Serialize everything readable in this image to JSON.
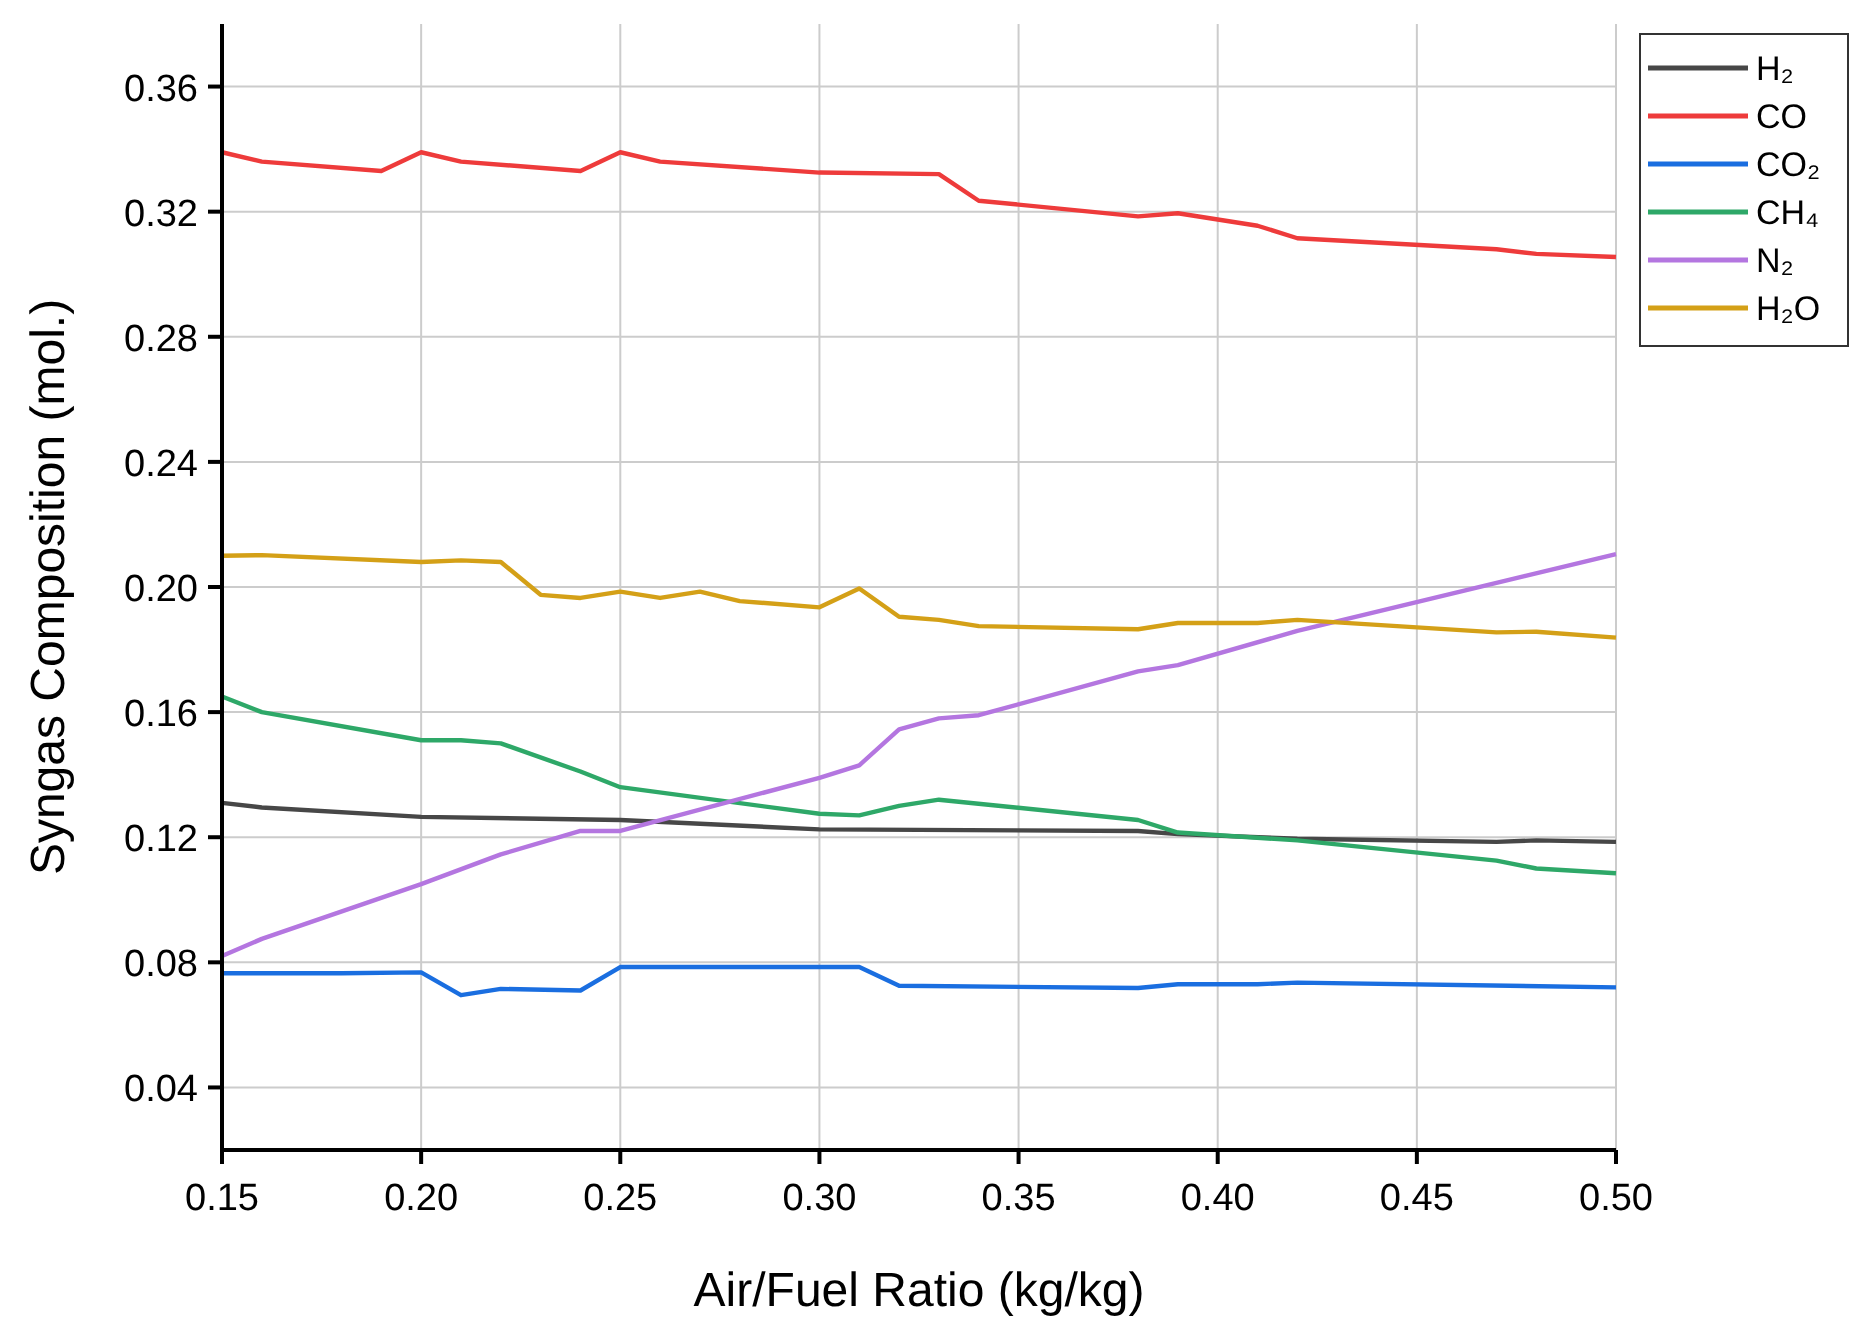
{
  "chart_data": {
    "type": "line",
    "xlabel": "Air/Fuel Ratio (kg/kg)",
    "ylabel": "Syngas Composition (mol.)",
    "xlim": [
      0.15,
      0.5
    ],
    "ylim": [
      0.02,
      0.38
    ],
    "xticks": [
      0.15,
      {
        "value": 0.2,
        "label": "0.20"
      },
      0.25,
      {
        "value": 0.3,
        "label": "0.30"
      },
      0.35,
      {
        "value": 0.4,
        "label": "0.40"
      },
      0.45,
      {
        "value": 0.5,
        "label": "0.50"
      }
    ],
    "yticks": [
      0.04,
      {
        "value": 0.08,
        "label": "0.08"
      },
      0.12,
      0.16,
      {
        "value": 0.2,
        "label": "0.20"
      },
      0.24,
      0.28,
      0.32,
      0.36
    ],
    "grid": true,
    "legend": "top right",
    "line_style": "solid",
    "marker": "none",
    "series": [
      {
        "name": "H₂",
        "color": "#474747",
        "x": [
          0.15,
          0.16,
          0.2,
          0.25,
          0.3,
          0.38,
          0.39,
          0.42,
          0.47,
          0.48,
          0.5
        ],
        "values": [
          0.131,
          0.1295,
          0.1265,
          0.1255,
          0.1225,
          0.122,
          0.121,
          0.1195,
          0.1185,
          0.119,
          0.1185
        ]
      },
      {
        "name": "CO",
        "color": "#ee3b3b",
        "x": [
          0.15,
          0.16,
          0.19,
          0.2,
          0.21,
          0.24,
          0.25,
          0.26,
          0.3,
          0.33,
          0.34,
          0.38,
          0.39,
          0.41,
          0.42,
          0.47,
          0.48,
          0.5
        ],
        "values": [
          0.339,
          0.336,
          0.333,
          0.339,
          0.336,
          0.333,
          0.339,
          0.336,
          0.3325,
          0.332,
          0.3235,
          0.3185,
          0.3195,
          0.3155,
          0.3115,
          0.308,
          0.3065,
          0.3055
        ]
      },
      {
        "name": "CO₂",
        "color": "#1a6ee0",
        "x": [
          0.15,
          0.18,
          0.2,
          0.21,
          0.22,
          0.24,
          0.25,
          0.31,
          0.32,
          0.38,
          0.39,
          0.41,
          0.42,
          0.5
        ],
        "values": [
          0.0765,
          0.0765,
          0.0768,
          0.0695,
          0.0715,
          0.071,
          0.0785,
          0.0785,
          0.0725,
          0.0718,
          0.073,
          0.073,
          0.0735,
          0.072
        ]
      },
      {
        "name": "CH₄",
        "color": "#2ea868",
        "x": [
          0.15,
          0.16,
          0.2,
          0.21,
          0.22,
          0.24,
          0.25,
          0.3,
          0.31,
          0.32,
          0.33,
          0.38,
          0.39,
          0.42,
          0.47,
          0.48,
          0.5
        ],
        "values": [
          0.165,
          0.16,
          0.151,
          0.151,
          0.15,
          0.141,
          0.136,
          0.1275,
          0.127,
          0.13,
          0.132,
          0.1255,
          0.1215,
          0.119,
          0.1125,
          0.11,
          0.1085
        ]
      },
      {
        "name": "N₂",
        "color": "#b476e0",
        "x": [
          0.15,
          0.16,
          0.2,
          0.22,
          0.24,
          0.25,
          0.3,
          0.31,
          0.32,
          0.33,
          0.34,
          0.38,
          0.39,
          0.42,
          0.5
        ],
        "values": [
          0.082,
          0.0875,
          0.105,
          0.1145,
          0.122,
          0.122,
          0.139,
          0.143,
          0.1545,
          0.158,
          0.159,
          0.173,
          0.175,
          0.186,
          0.2105
        ]
      },
      {
        "name": "H₂O",
        "color": "#d4a017",
        "x": [
          0.15,
          0.16,
          0.2,
          0.21,
          0.22,
          0.23,
          0.24,
          0.25,
          0.26,
          0.27,
          0.28,
          0.3,
          0.31,
          0.32,
          0.33,
          0.34,
          0.38,
          0.39,
          0.41,
          0.42,
          0.47,
          0.48,
          0.5
        ],
        "values": [
          0.21,
          0.2102,
          0.208,
          0.2085,
          0.208,
          0.1975,
          0.1965,
          0.1985,
          0.1965,
          0.1985,
          0.1955,
          0.1935,
          0.1995,
          0.1905,
          0.1895,
          0.1875,
          0.1865,
          0.1885,
          0.1885,
          0.1895,
          0.1855,
          0.1857,
          0.1838
        ]
      }
    ]
  }
}
